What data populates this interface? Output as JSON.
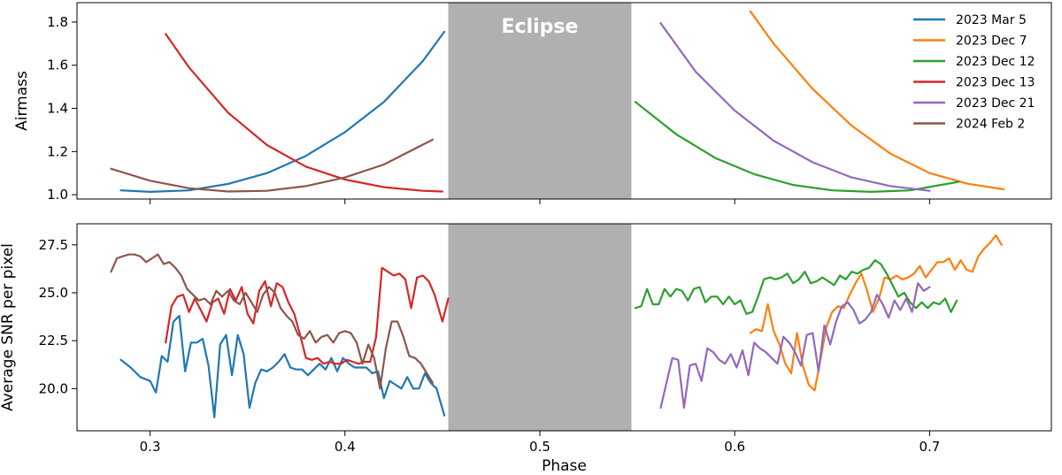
{
  "chart_data": [
    {
      "type": "line",
      "panel": "top",
      "ylabel": "Airmass",
      "ylim": [
        0.98,
        1.89
      ],
      "xlim": [
        0.2625,
        0.7625
      ],
      "yticks": [
        1.0,
        1.2,
        1.4,
        1.6,
        1.8
      ],
      "ytick_labels": [
        "1.0",
        "1.2",
        "1.4",
        "1.6",
        "1.8"
      ],
      "xticks": [
        0.3,
        0.4,
        0.5,
        0.6,
        0.7
      ],
      "shaded_region": {
        "label": "Eclipse",
        "x": [
          0.453,
          0.547
        ],
        "color": "#b0b0b0"
      },
      "legend": {
        "placement": "top-right"
      },
      "series": [
        {
          "name": "2023 Mar 5",
          "color": "#1f77b4",
          "x": [
            0.285,
            0.3,
            0.32,
            0.34,
            0.36,
            0.38,
            0.4,
            0.42,
            0.44,
            0.451
          ],
          "y": [
            1.02,
            1.013,
            1.02,
            1.05,
            1.1,
            1.18,
            1.29,
            1.43,
            1.62,
            1.755
          ]
        },
        {
          "name": "2023 Dec 7",
          "color": "#ff7f0e",
          "x": [
            0.608,
            0.62,
            0.64,
            0.66,
            0.68,
            0.7,
            0.72,
            0.738
          ],
          "y": [
            1.85,
            1.7,
            1.49,
            1.32,
            1.19,
            1.1,
            1.05,
            1.025
          ]
        },
        {
          "name": "2023 Dec 12",
          "color": "#2ca02c",
          "x": [
            0.549,
            0.57,
            0.59,
            0.61,
            0.63,
            0.65,
            0.67,
            0.69,
            0.715
          ],
          "y": [
            1.43,
            1.28,
            1.17,
            1.095,
            1.045,
            1.02,
            1.013,
            1.02,
            1.06
          ]
        },
        {
          "name": "2023 Dec 13",
          "color": "#d62728",
          "x": [
            0.308,
            0.32,
            0.34,
            0.36,
            0.38,
            0.4,
            0.42,
            0.44,
            0.45
          ],
          "y": [
            1.745,
            1.59,
            1.38,
            1.23,
            1.13,
            1.07,
            1.035,
            1.018,
            1.015
          ]
        },
        {
          "name": "2023 Dec 21",
          "color": "#9467bd",
          "x": [
            0.562,
            0.58,
            0.6,
            0.62,
            0.64,
            0.66,
            0.68,
            0.7
          ],
          "y": [
            1.795,
            1.57,
            1.39,
            1.25,
            1.15,
            1.08,
            1.04,
            1.018
          ]
        },
        {
          "name": "2024 Feb 2",
          "color": "#8c564b",
          "x": [
            0.28,
            0.3,
            0.32,
            0.34,
            0.36,
            0.38,
            0.4,
            0.42,
            0.445
          ],
          "y": [
            1.12,
            1.065,
            1.03,
            1.015,
            1.018,
            1.04,
            1.08,
            1.14,
            1.255
          ]
        }
      ]
    },
    {
      "type": "line",
      "panel": "bottom",
      "xlabel": "Phase",
      "ylabel": "Average SNR per pixel",
      "ylim": [
        17.8,
        28.6
      ],
      "xlim": [
        0.2625,
        0.7625
      ],
      "yticks": [
        20.0,
        22.5,
        25.0,
        27.5
      ],
      "ytick_labels": [
        "20.0",
        "22.5",
        "25.0",
        "27.5"
      ],
      "xticks": [
        0.3,
        0.4,
        0.5,
        0.6,
        0.7
      ],
      "xtick_labels": [
        "0.3",
        "0.4",
        "0.5",
        "0.6",
        "0.7"
      ],
      "shaded_region": {
        "x": [
          0.453,
          0.547
        ],
        "color": "#b0b0b0"
      },
      "series": [
        {
          "name": "2023 Mar 5",
          "color": "#1f77b4",
          "x": [
            0.285,
            0.29,
            0.295,
            0.3,
            0.303,
            0.306,
            0.309,
            0.312,
            0.315,
            0.318,
            0.321,
            0.324,
            0.327,
            0.33,
            0.333,
            0.336,
            0.339,
            0.342,
            0.345,
            0.348,
            0.351,
            0.354,
            0.357,
            0.36,
            0.363,
            0.366,
            0.369,
            0.372,
            0.375,
            0.378,
            0.381,
            0.384,
            0.387,
            0.39,
            0.393,
            0.396,
            0.399,
            0.402,
            0.405,
            0.408,
            0.411,
            0.414,
            0.417,
            0.42,
            0.423,
            0.426,
            0.429,
            0.432,
            0.435,
            0.438,
            0.441,
            0.444,
            0.447,
            0.451
          ],
          "y": [
            21.5,
            21.1,
            20.6,
            20.4,
            19.8,
            21.7,
            21.4,
            23.5,
            23.8,
            20.9,
            22.4,
            22.4,
            22.6,
            21.2,
            18.5,
            22.3,
            22.8,
            20.7,
            22.8,
            21.8,
            19.0,
            20.3,
            21.0,
            20.9,
            21.1,
            21.4,
            21.8,
            21.1,
            21.0,
            21.0,
            20.7,
            21.0,
            21.3,
            21.0,
            21.6,
            20.9,
            21.6,
            21.3,
            21.1,
            21.1,
            21.1,
            20.8,
            20.9,
            19.5,
            20.4,
            20.2,
            20.0,
            20.6,
            20.0,
            20.0,
            20.8,
            20.3,
            20.0,
            18.6
          ]
        },
        {
          "name": "2023 Dec 7",
          "color": "#ff7f0e",
          "x": [
            0.608,
            0.611,
            0.614,
            0.617,
            0.62,
            0.623,
            0.626,
            0.629,
            0.632,
            0.635,
            0.638,
            0.641,
            0.644,
            0.647,
            0.65,
            0.653,
            0.656,
            0.659,
            0.662,
            0.665,
            0.668,
            0.671,
            0.674,
            0.677,
            0.68,
            0.683,
            0.686,
            0.689,
            0.692,
            0.695,
            0.698,
            0.701,
            0.704,
            0.707,
            0.71,
            0.713,
            0.716,
            0.719,
            0.722,
            0.725,
            0.728,
            0.731,
            0.734,
            0.737
          ],
          "y": [
            22.9,
            23.1,
            23.0,
            24.4,
            23.0,
            22.3,
            21.3,
            20.8,
            22.9,
            21.2,
            20.2,
            19.9,
            21.5,
            23.2,
            24.0,
            24.3,
            24.2,
            24.9,
            25.5,
            26.0,
            25.1,
            24.0,
            24.7,
            25.8,
            25.7,
            25.9,
            25.7,
            25.8,
            26.0,
            26.4,
            25.8,
            26.2,
            26.6,
            26.6,
            26.8,
            26.2,
            26.7,
            26.2,
            26.1,
            26.9,
            27.3,
            27.6,
            28.0,
            27.5
          ]
        },
        {
          "name": "2023 Dec 12",
          "color": "#2ca02c",
          "x": [
            0.549,
            0.552,
            0.555,
            0.558,
            0.561,
            0.564,
            0.567,
            0.57,
            0.573,
            0.576,
            0.579,
            0.582,
            0.585,
            0.588,
            0.591,
            0.594,
            0.597,
            0.6,
            0.603,
            0.606,
            0.609,
            0.612,
            0.615,
            0.618,
            0.621,
            0.624,
            0.627,
            0.63,
            0.633,
            0.636,
            0.639,
            0.642,
            0.645,
            0.648,
            0.651,
            0.654,
            0.657,
            0.66,
            0.663,
            0.666,
            0.669,
            0.672,
            0.675,
            0.678,
            0.681,
            0.684,
            0.687,
            0.69,
            0.693,
            0.696,
            0.699,
            0.702,
            0.705,
            0.708,
            0.711,
            0.714
          ],
          "y": [
            24.2,
            24.3,
            25.2,
            24.4,
            24.4,
            25.2,
            24.8,
            25.2,
            25.1,
            24.6,
            25.2,
            25.3,
            24.5,
            24.8,
            24.8,
            24.4,
            24.8,
            24.4,
            24.6,
            23.9,
            24.0,
            24.8,
            25.7,
            25.8,
            25.7,
            25.8,
            26.0,
            25.5,
            25.7,
            26.1,
            25.5,
            25.6,
            25.8,
            25.6,
            25.4,
            25.9,
            25.7,
            26.1,
            26.0,
            26.2,
            26.3,
            26.7,
            26.5,
            26.0,
            25.4,
            24.8,
            25.0,
            24.5,
            24.2,
            24.5,
            24.2,
            24.5,
            24.4,
            24.7,
            24.0,
            24.6
          ]
        },
        {
          "name": "2023 Dec 13",
          "color": "#d62728",
          "x": [
            0.308,
            0.311,
            0.314,
            0.317,
            0.32,
            0.323,
            0.326,
            0.329,
            0.332,
            0.335,
            0.338,
            0.341,
            0.344,
            0.347,
            0.35,
            0.353,
            0.356,
            0.359,
            0.362,
            0.365,
            0.368,
            0.371,
            0.374,
            0.377,
            0.38,
            0.383,
            0.386,
            0.389,
            0.392,
            0.395,
            0.398,
            0.401,
            0.404,
            0.407,
            0.41,
            0.413,
            0.416,
            0.419,
            0.422,
            0.425,
            0.428,
            0.431,
            0.434,
            0.437,
            0.44,
            0.443,
            0.446,
            0.45,
            0.453
          ],
          "y": [
            22.4,
            24.3,
            24.8,
            24.9,
            24.0,
            24.7,
            24.1,
            23.5,
            24.5,
            24.7,
            23.9,
            25.2,
            24.6,
            25.3,
            23.9,
            23.4,
            25.1,
            25.6,
            24.3,
            25.5,
            25.3,
            24.5,
            23.9,
            22.8,
            21.6,
            21.5,
            21.6,
            21.3,
            21.4,
            21.3,
            21.3,
            21.5,
            21.4,
            21.3,
            21.4,
            21.4,
            22.7,
            26.3,
            26.1,
            25.9,
            26.0,
            25.7,
            24.2,
            25.8,
            25.9,
            25.6,
            24.9,
            23.5,
            24.7
          ]
        },
        {
          "name": "2023 Dec 21",
          "color": "#9467bd",
          "x": [
            0.562,
            0.565,
            0.568,
            0.571,
            0.574,
            0.577,
            0.58,
            0.583,
            0.586,
            0.589,
            0.592,
            0.595,
            0.598,
            0.601,
            0.604,
            0.607,
            0.61,
            0.613,
            0.616,
            0.619,
            0.622,
            0.625,
            0.628,
            0.631,
            0.634,
            0.637,
            0.64,
            0.643,
            0.646,
            0.649,
            0.652,
            0.655,
            0.658,
            0.661,
            0.664,
            0.667,
            0.67,
            0.673,
            0.676,
            0.679,
            0.682,
            0.685,
            0.688,
            0.691,
            0.694,
            0.697,
            0.7
          ],
          "y": [
            19.0,
            20.3,
            21.6,
            21.5,
            19.0,
            21.2,
            21.3,
            20.4,
            22.1,
            21.9,
            21.5,
            21.3,
            21.8,
            21.1,
            22.0,
            20.7,
            22.4,
            22.1,
            21.9,
            21.6,
            21.3,
            22.7,
            22.4,
            21.9,
            21.2,
            22.8,
            22.9,
            20.9,
            23.3,
            22.3,
            23.5,
            24.3,
            24.5,
            24.1,
            23.4,
            23.6,
            24.0,
            24.9,
            24.4,
            23.7,
            24.6,
            24.1,
            24.7,
            24.0,
            25.5,
            25.1,
            25.3
          ]
        },
        {
          "name": "2024 Feb 2",
          "color": "#8c564b",
          "x": [
            0.28,
            0.283,
            0.286,
            0.289,
            0.292,
            0.295,
            0.298,
            0.301,
            0.304,
            0.307,
            0.31,
            0.313,
            0.316,
            0.319,
            0.322,
            0.325,
            0.328,
            0.331,
            0.334,
            0.337,
            0.34,
            0.343,
            0.346,
            0.349,
            0.352,
            0.355,
            0.358,
            0.361,
            0.364,
            0.367,
            0.37,
            0.373,
            0.376,
            0.379,
            0.382,
            0.385,
            0.388,
            0.391,
            0.394,
            0.397,
            0.4,
            0.403,
            0.406,
            0.409,
            0.412,
            0.415,
            0.418,
            0.421,
            0.424,
            0.427,
            0.43,
            0.433,
            0.436,
            0.439,
            0.442,
            0.445
          ],
          "y": [
            26.1,
            26.8,
            26.9,
            27.0,
            27.0,
            26.9,
            26.6,
            26.8,
            27.0,
            26.5,
            26.6,
            26.3,
            25.9,
            25.2,
            24.9,
            24.6,
            24.7,
            24.4,
            25.1,
            24.8,
            25.1,
            24.6,
            24.4,
            25.0,
            24.5,
            24.0,
            24.9,
            25.3,
            25.0,
            24.2,
            23.8,
            23.5,
            22.8,
            22.6,
            23.0,
            22.4,
            22.7,
            22.8,
            22.4,
            22.9,
            23.0,
            22.9,
            22.4,
            21.3,
            22.3,
            21.6,
            20.0,
            22.1,
            23.5,
            23.5,
            22.7,
            21.7,
            21.6,
            21.3,
            20.8,
            20.3
          ]
        }
      ]
    }
  ]
}
